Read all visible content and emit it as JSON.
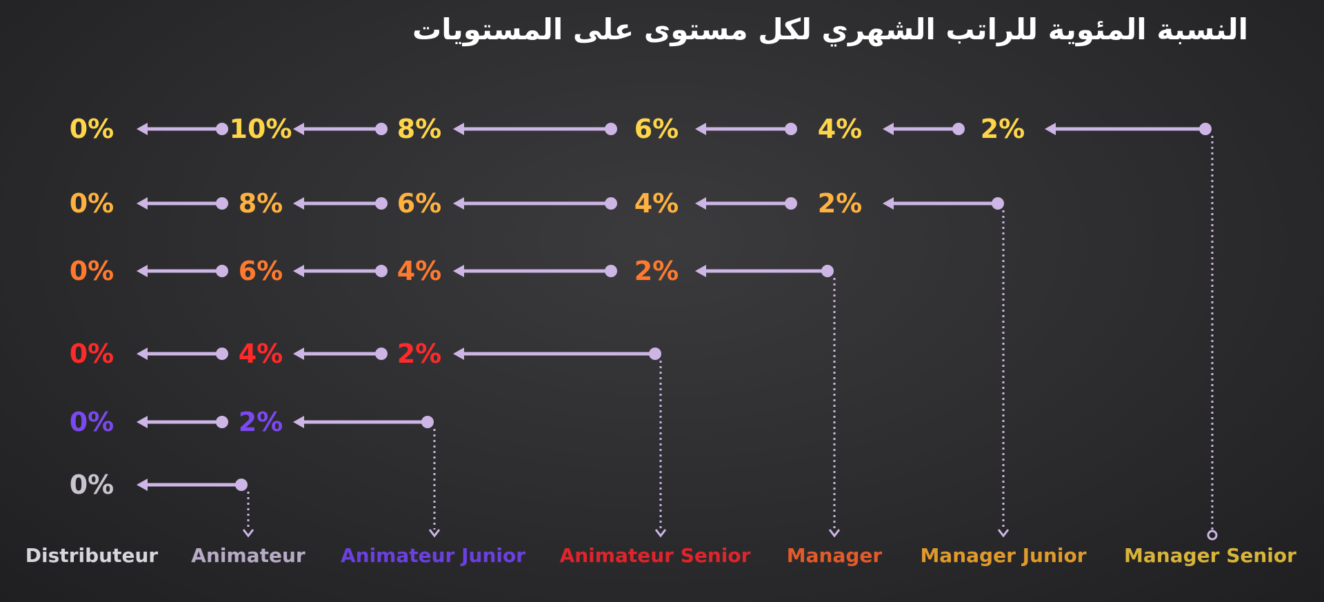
{
  "title": "النسبة المئوية للراتب الشهري لكل مستوى على المستويات",
  "colors": {
    "arrow": "#cdb6e6",
    "yellow": "#ffd54a",
    "light_orange": "#ffb23f",
    "orange": "#ff7a2e",
    "red": "#ff2a2a",
    "purple": "#7b49f0",
    "gray": "#c9c4cf"
  },
  "levels": [
    {
      "id": "distributeur",
      "label": "Distributeur",
      "color": "#d8d6dc"
    },
    {
      "id": "animateur",
      "label": "Animateur",
      "color": "#b7abc6"
    },
    {
      "id": "animateur-junior",
      "label": "Animateur Junior",
      "color": "#6c40e0"
    },
    {
      "id": "animateur-senior",
      "label": "Animateur Senior",
      "color": "#e0242b"
    },
    {
      "id": "manager",
      "label": "Manager",
      "color": "#e35b28"
    },
    {
      "id": "manager-junior",
      "label": "Manager Junior",
      "color": "#e09a2c"
    },
    {
      "id": "manager-senior",
      "label": "Manager Senior",
      "color": "#d8b43a"
    }
  ],
  "rows": [
    {
      "source": "Manager Senior",
      "color": "#ffd54a",
      "values": [
        "0%",
        "10%",
        "8%",
        "6%",
        "4%",
        "2%"
      ]
    },
    {
      "source": "Manager Junior",
      "color": "#ffb23f",
      "values": [
        "0%",
        "8%",
        "6%",
        "4%",
        "2%"
      ]
    },
    {
      "source": "Manager",
      "color": "#ff7a2e",
      "values": [
        "0%",
        "6%",
        "4%",
        "2%"
      ]
    },
    {
      "source": "Animateur Senior",
      "color": "#ff2a2a",
      "values": [
        "0%",
        "4%",
        "2%"
      ]
    },
    {
      "source": "Animateur Junior",
      "color": "#7b49f0",
      "values": [
        "0%",
        "2%"
      ]
    },
    {
      "source": "Animateur",
      "color": "#c9c4cf",
      "values": [
        "0%"
      ]
    }
  ]
}
